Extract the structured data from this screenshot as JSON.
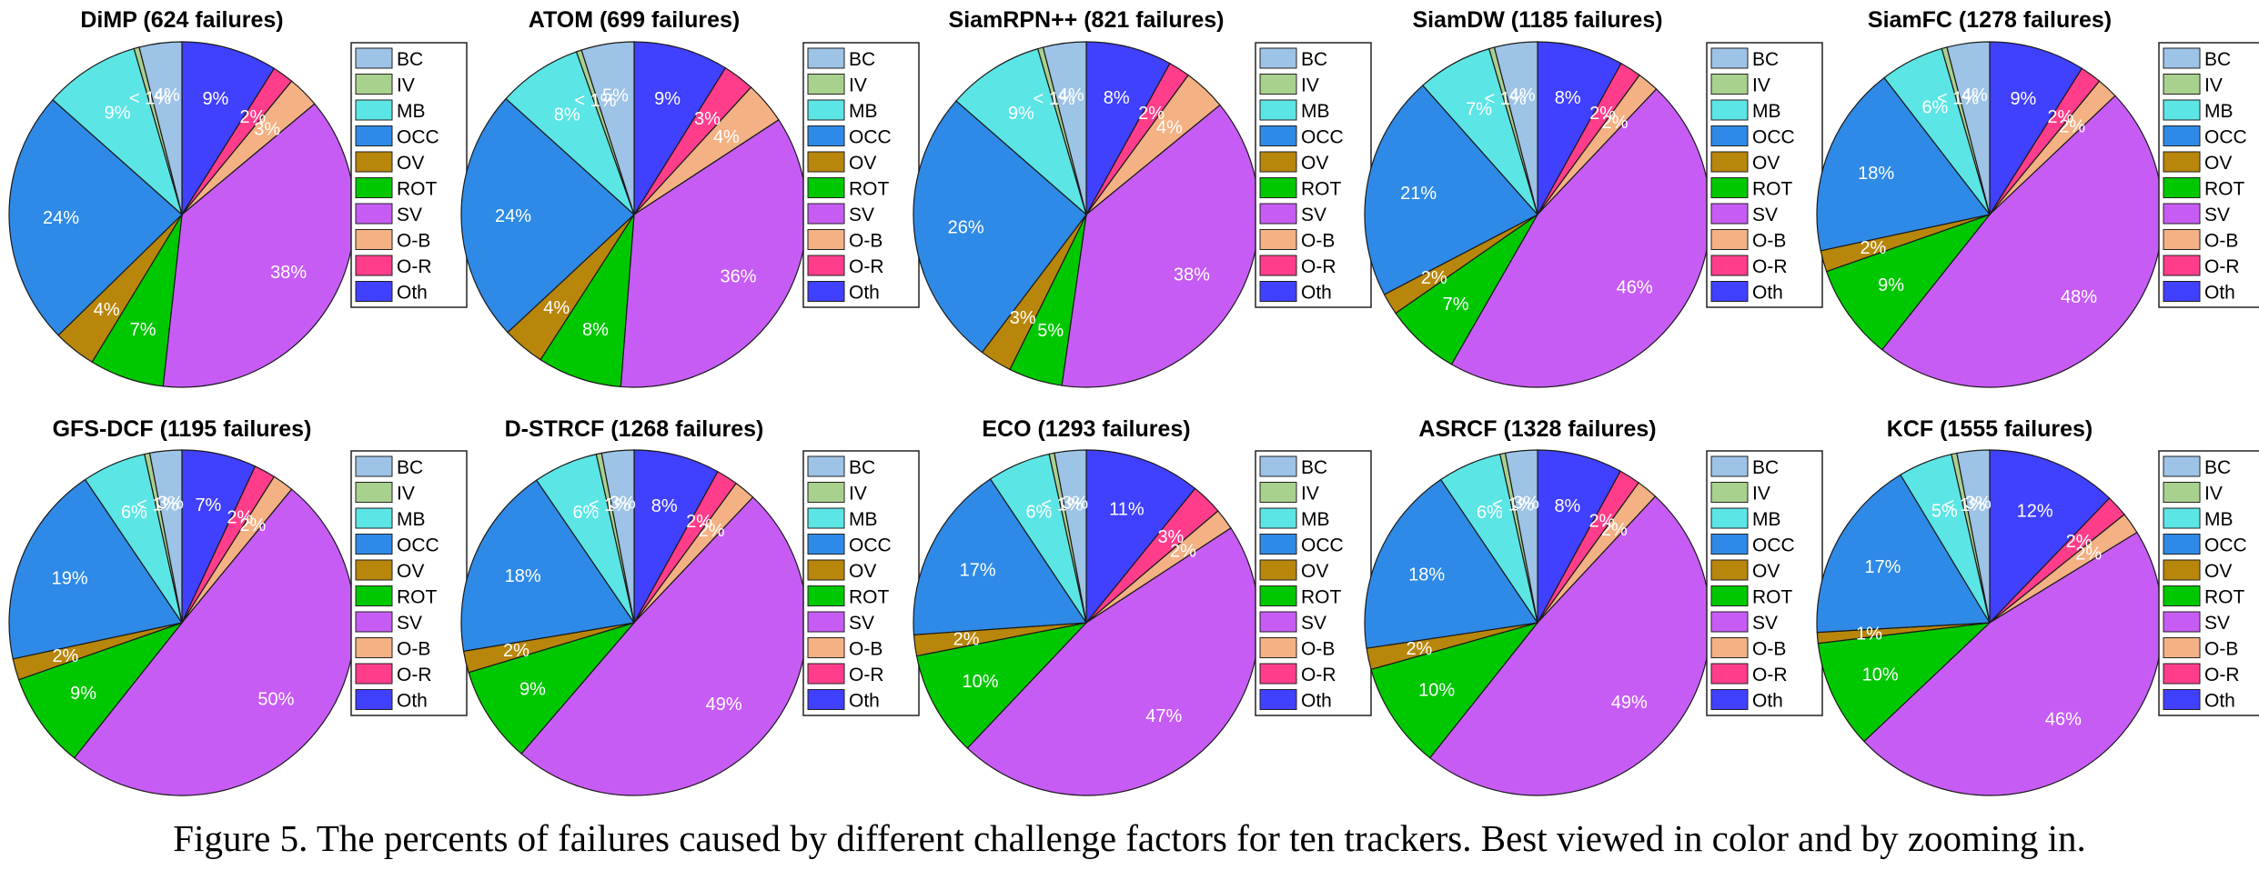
{
  "caption": "Figure 5. The percents of failures caused by different challenge factors for ten trackers. Best viewed in color and by zooming in.",
  "legend": [
    "BC",
    "IV",
    "MB",
    "OCC",
    "OV",
    "ROT",
    "SV",
    "O-B",
    "O-R",
    "Oth"
  ],
  "colors": {
    "BC": "#9dc3e6",
    "IV": "#a9d18e",
    "MB": "#5ce5e5",
    "OCC": "#2e8ae6",
    "OV": "#b8860b",
    "ROT": "#00c800",
    "SV": "#c75cf5",
    "O-B": "#f4b183",
    "O-R": "#ff3d8b",
    "Oth": "#4040ff"
  },
  "chart_data": [
    {
      "type": "pie",
      "title": "DiMP (624 failures)",
      "categories": [
        "BC",
        "IV",
        "MB",
        "OCC",
        "OV",
        "ROT",
        "SV",
        "O-B",
        "O-R",
        "Oth"
      ],
      "values": [
        4,
        0.5,
        9,
        24,
        4,
        7,
        38,
        3,
        2,
        9
      ],
      "labels": [
        "4%",
        "< 1%",
        "9%",
        "24%",
        "4%",
        "7%",
        "38%",
        "3%",
        "2%",
        "9%"
      ]
    },
    {
      "type": "pie",
      "title": "ATOM (699 failures)",
      "categories": [
        "BC",
        "IV",
        "MB",
        "OCC",
        "OV",
        "ROT",
        "SV",
        "O-B",
        "O-R",
        "Oth"
      ],
      "values": [
        5,
        0.5,
        8,
        24,
        4,
        8,
        36,
        4,
        3,
        9
      ],
      "labels": [
        "5%",
        "< 1%",
        "8%",
        "24%",
        "4%",
        "8%",
        "36%",
        "4%",
        "3%",
        "9%"
      ]
    },
    {
      "type": "pie",
      "title": "SiamRPN++ (821 failures)",
      "categories": [
        "BC",
        "IV",
        "MB",
        "OCC",
        "OV",
        "ROT",
        "SV",
        "O-B",
        "O-R",
        "Oth"
      ],
      "values": [
        4,
        0.5,
        9,
        26,
        3,
        5,
        38,
        4,
        2,
        8
      ],
      "labels": [
        "4%",
        "< 1%",
        "9%",
        "26%",
        "3%",
        "5%",
        "38%",
        "4%",
        "2%",
        "8%"
      ]
    },
    {
      "type": "pie",
      "title": "SiamDW (1185 failures)",
      "categories": [
        "BC",
        "IV",
        "MB",
        "OCC",
        "OV",
        "ROT",
        "SV",
        "O-B",
        "O-R",
        "Oth"
      ],
      "values": [
        4,
        0.5,
        7,
        21,
        2,
        7,
        46,
        2,
        2,
        8
      ],
      "labels": [
        "4%",
        "< 1%",
        "7%",
        "21%",
        "2%",
        "7%",
        "46%",
        "2%",
        "2%",
        "8%"
      ]
    },
    {
      "type": "pie",
      "title": "SiamFC (1278 failures)",
      "categories": [
        "BC",
        "IV",
        "MB",
        "OCC",
        "OV",
        "ROT",
        "SV",
        "O-B",
        "O-R",
        "Oth"
      ],
      "values": [
        4,
        0.5,
        6,
        18,
        2,
        9,
        48,
        2,
        2,
        9
      ],
      "labels": [
        "4%",
        "< 1%",
        "6%",
        "18%",
        "2%",
        "9%",
        "48%",
        "2%",
        "2%",
        "9%"
      ]
    },
    {
      "type": "pie",
      "title": "GFS-DCF (1195 failures)",
      "categories": [
        "BC",
        "IV",
        "MB",
        "OCC",
        "OV",
        "ROT",
        "SV",
        "O-B",
        "O-R",
        "Oth"
      ],
      "values": [
        3,
        0.5,
        6,
        19,
        2,
        9,
        50,
        2,
        2,
        7
      ],
      "labels": [
        "3%",
        "< 1%",
        "6%",
        "19%",
        "2%",
        "9%",
        "50%",
        "2%",
        "2%",
        "7%"
      ]
    },
    {
      "type": "pie",
      "title": "D-STRCF (1268 failures)",
      "categories": [
        "BC",
        "IV",
        "MB",
        "OCC",
        "OV",
        "ROT",
        "SV",
        "O-B",
        "O-R",
        "Oth"
      ],
      "values": [
        3,
        0.5,
        6,
        18,
        2,
        9,
        49,
        2,
        2,
        8
      ],
      "labels": [
        "3%",
        "< 1%",
        "6%",
        "18%",
        "2%",
        "9%",
        "49%",
        "2%",
        "2%",
        "8%"
      ]
    },
    {
      "type": "pie",
      "title": "ECO (1293 failures)",
      "categories": [
        "BC",
        "IV",
        "MB",
        "OCC",
        "OV",
        "ROT",
        "SV",
        "O-B",
        "O-R",
        "Oth"
      ],
      "values": [
        3,
        0.5,
        6,
        17,
        2,
        10,
        47,
        2,
        3,
        11
      ],
      "labels": [
        "3%",
        "< 1%",
        "6%",
        "17%",
        "2%",
        "10%",
        "47%",
        "2%",
        "3%",
        "11%"
      ]
    },
    {
      "type": "pie",
      "title": "ASRCF (1328 failures)",
      "categories": [
        "BC",
        "IV",
        "MB",
        "OCC",
        "OV",
        "ROT",
        "SV",
        "O-B",
        "O-R",
        "Oth"
      ],
      "values": [
        3,
        0.5,
        6,
        18,
        2,
        10,
        49,
        2,
        2,
        8
      ],
      "labels": [
        "3%",
        "< 1%",
        "6%",
        "18%",
        "2%",
        "10%",
        "49%",
        "2%",
        "2%",
        "8%"
      ]
    },
    {
      "type": "pie",
      "title": "KCF (1555 failures)",
      "categories": [
        "BC",
        "IV",
        "MB",
        "OCC",
        "OV",
        "ROT",
        "SV",
        "O-B",
        "O-R",
        "Oth"
      ],
      "values": [
        3,
        0.5,
        5,
        17,
        1,
        10,
        46,
        2,
        2,
        12
      ],
      "labels": [
        "3%",
        "< 1%",
        "5%",
        "17%",
        "1%",
        "10%",
        "46%",
        "2%",
        "2%",
        "12%"
      ]
    }
  ]
}
